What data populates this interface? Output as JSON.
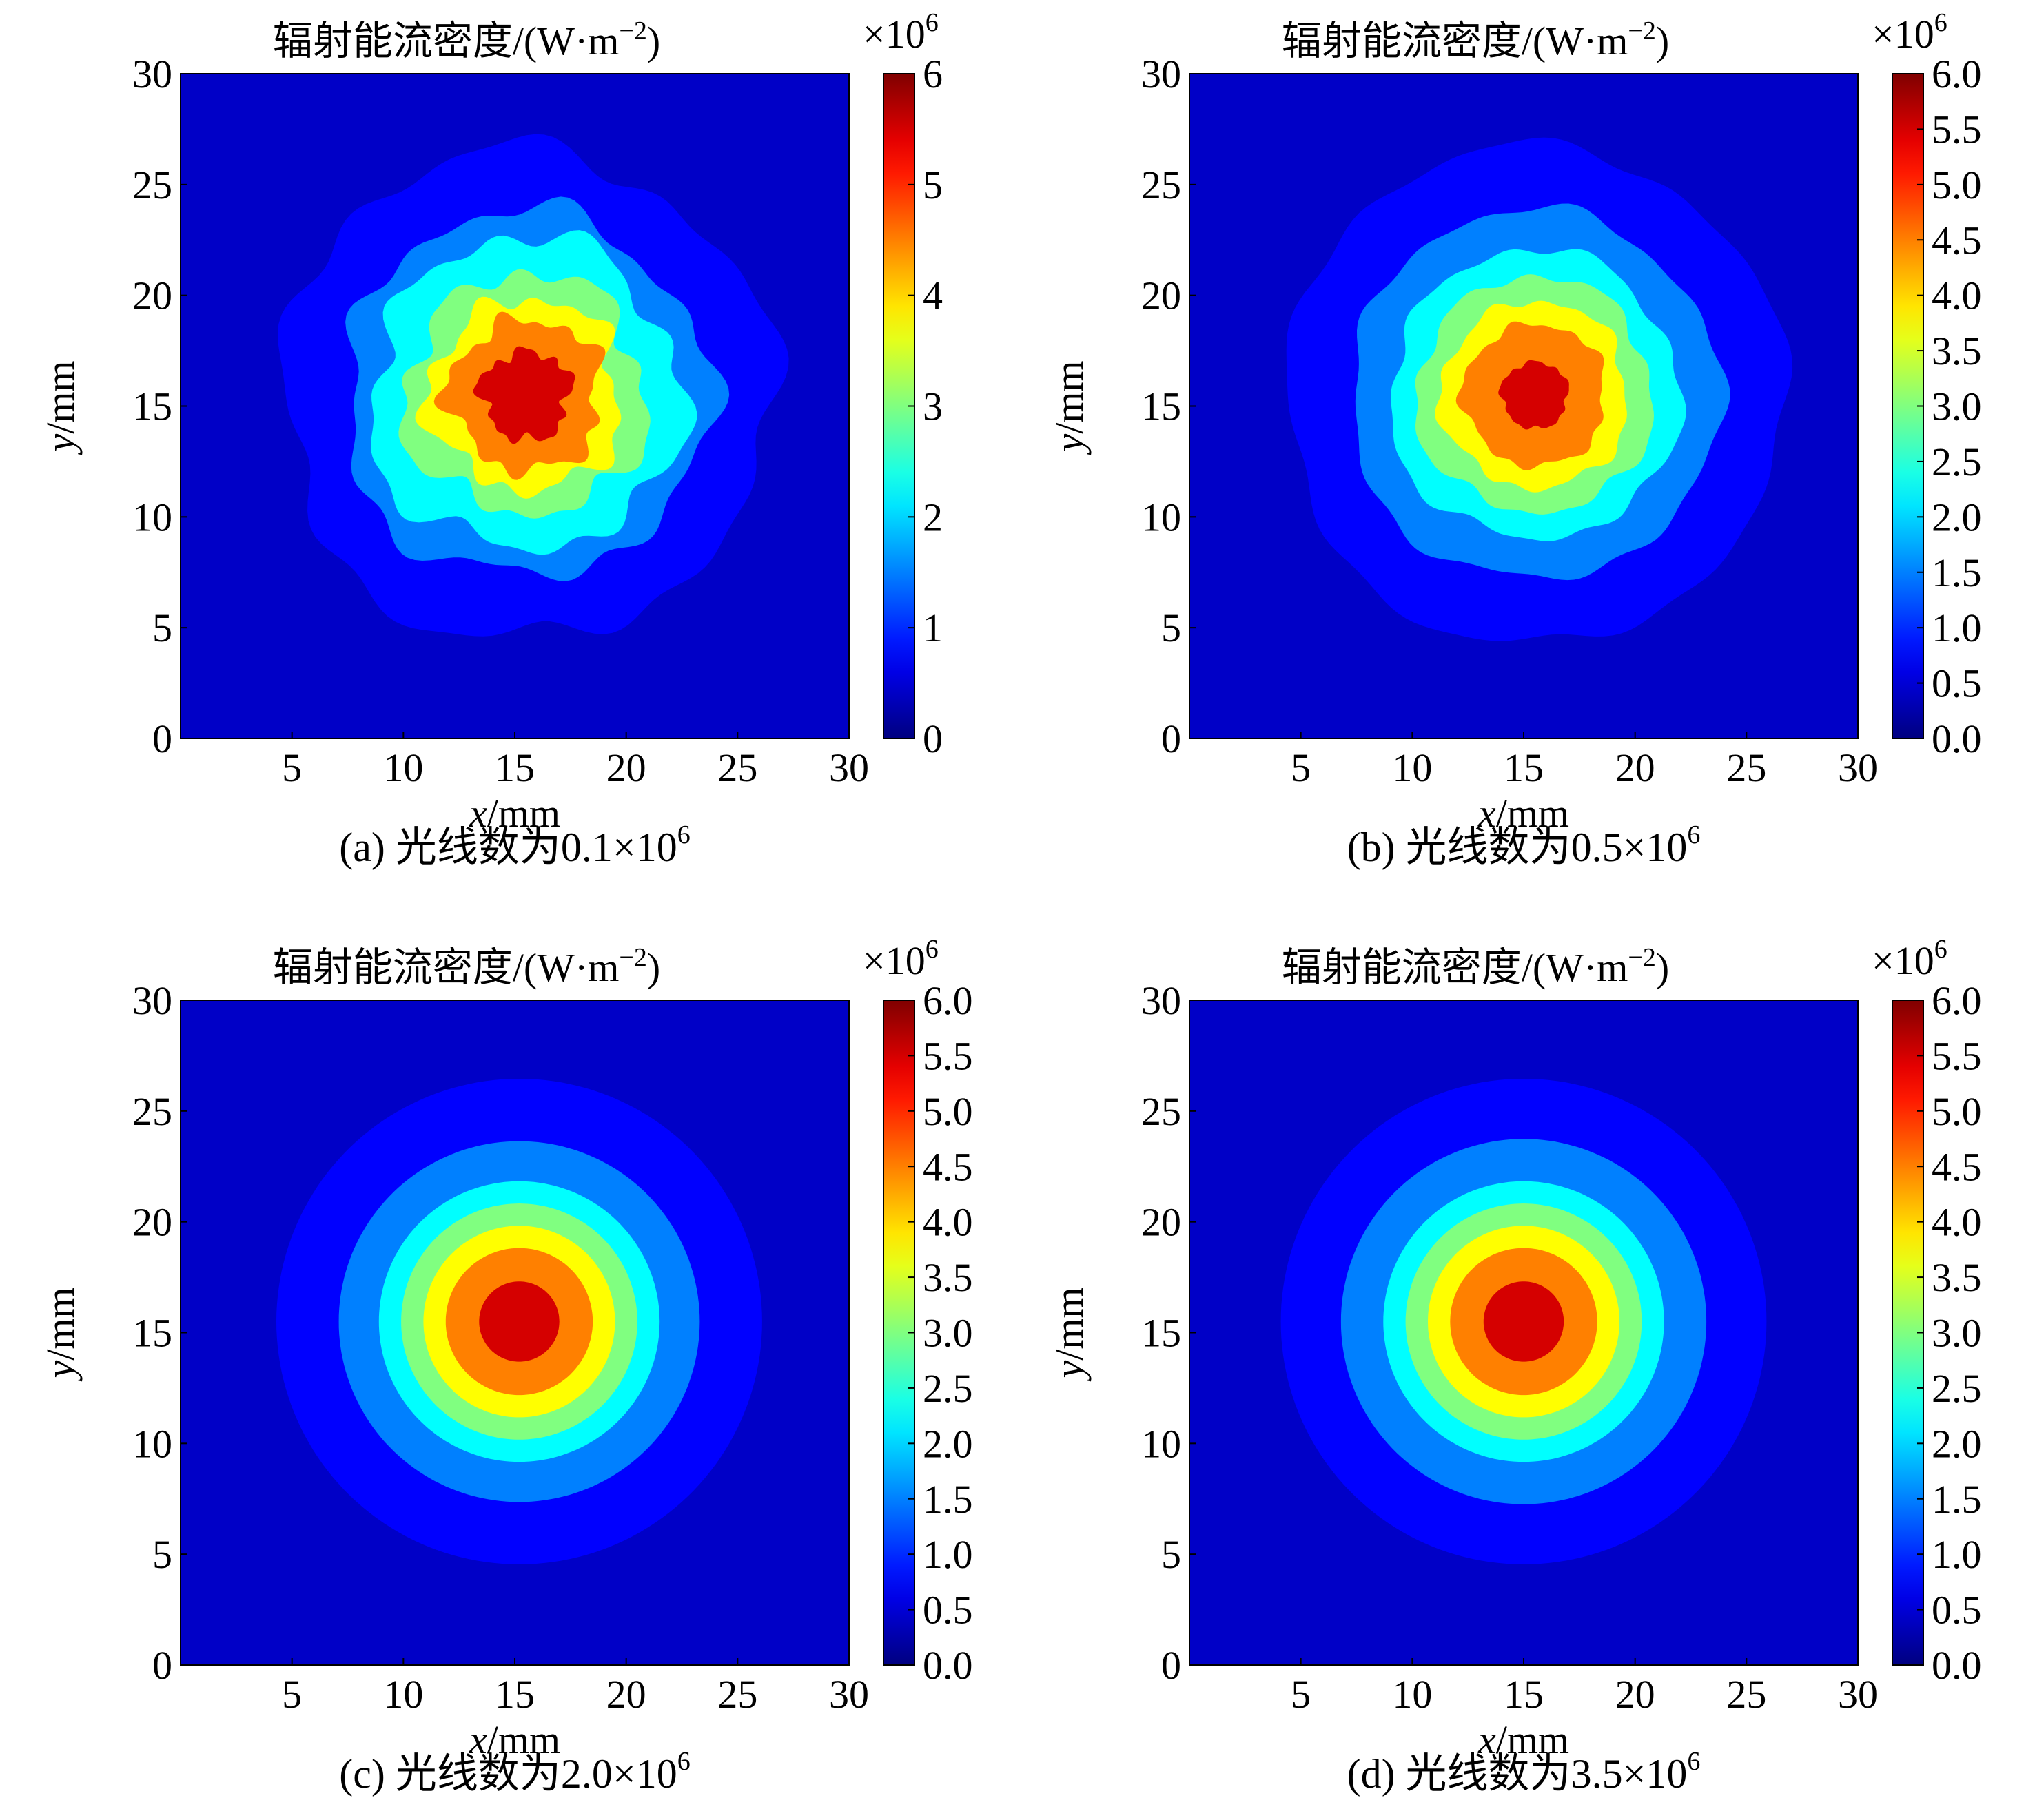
{
  "chart_data": [
    {
      "type": "heatmap",
      "panel": "a",
      "title": "辐射能流密度/(W·m",
      "title_sup": "−2",
      "title_tail": ")",
      "caption_prefix": "(a) 光线数为",
      "caption_value": "0.1×10",
      "caption_sup": "6",
      "xlabel_var": "x",
      "xlabel_unit": "/mm",
      "ylabel_var": "y",
      "ylabel_unit": "/mm",
      "xlim": [
        0,
        30
      ],
      "ylim": [
        0,
        30
      ],
      "x_ticks": [
        "5",
        "10",
        "15",
        "20",
        "25",
        "30"
      ],
      "y_ticks": [
        "0",
        "5",
        "10",
        "15",
        "20",
        "25",
        "30"
      ],
      "colorbar_multiplier": "×10",
      "colorbar_multiplier_sup": "6",
      "colorbar_range": [
        0,
        6
      ],
      "colorbar_ticks": [
        {
          "v": 0,
          "label": "0"
        },
        {
          "v": 1,
          "label": "1"
        },
        {
          "v": 2,
          "label": "2"
        },
        {
          "v": 3,
          "label": "3"
        },
        {
          "v": 4,
          "label": "4"
        },
        {
          "v": 5,
          "label": "5"
        },
        {
          "v": 6,
          "label": "6"
        }
      ],
      "center": [
        15.5,
        15.5
      ],
      "contour_levels": [
        0.75,
        1.5,
        2.25,
        3.0,
        3.75,
        4.5,
        5.5
      ],
      "contour_radii": [
        11.0,
        8.2,
        7.0,
        5.4,
        4.3,
        3.4,
        2.0
      ],
      "roughness": 0.1
    },
    {
      "type": "heatmap",
      "panel": "b",
      "title": "辐射能流密度/(W·m",
      "title_sup": "−2",
      "title_tail": ")",
      "caption_prefix": "(b) 光线数为",
      "caption_value": "0.5×10",
      "caption_sup": "6",
      "xlabel_var": "x",
      "xlabel_unit": "/mm",
      "ylabel_var": "y",
      "ylabel_unit": "/mm",
      "xlim": [
        0,
        30
      ],
      "ylim": [
        0,
        30
      ],
      "x_ticks": [
        "5",
        "10",
        "15",
        "20",
        "25",
        "30"
      ],
      "y_ticks": [
        "0",
        "5",
        "10",
        "15",
        "20",
        "25",
        "30"
      ],
      "colorbar_multiplier": "×10",
      "colorbar_multiplier_sup": "6",
      "colorbar_range": [
        0,
        6
      ],
      "colorbar_ticks": [
        {
          "v": 0,
          "label": "0.0"
        },
        {
          "v": 0.5,
          "label": "0.5"
        },
        {
          "v": 1,
          "label": "1.0"
        },
        {
          "v": 1.5,
          "label": "1.5"
        },
        {
          "v": 2,
          "label": "2.0"
        },
        {
          "v": 2.5,
          "label": "2.5"
        },
        {
          "v": 3,
          "label": "3.0"
        },
        {
          "v": 3.5,
          "label": "3.5"
        },
        {
          "v": 4,
          "label": "4.0"
        },
        {
          "v": 4.5,
          "label": "4.5"
        },
        {
          "v": 5,
          "label": "5.0"
        },
        {
          "v": 5.5,
          "label": "5.5"
        },
        {
          "v": 6,
          "label": "6.0"
        }
      ],
      "center": [
        15.5,
        15.5
      ],
      "contour_levels": [
        0.75,
        1.5,
        2.25,
        3.0,
        3.75,
        4.5,
        5.5
      ],
      "contour_radii": [
        11.2,
        8.3,
        6.5,
        5.3,
        4.2,
        3.2,
        1.5
      ],
      "roughness": 0.05
    },
    {
      "type": "heatmap",
      "panel": "c",
      "title": "辐射能流密度/(W·m",
      "title_sup": "−2",
      "title_tail": ")",
      "caption_prefix": "(c) 光线数为",
      "caption_value": "2.0×10",
      "caption_sup": "6",
      "xlabel_var": "x",
      "xlabel_unit": "/mm",
      "ylabel_var": "y",
      "ylabel_unit": "/mm",
      "xlim": [
        0,
        30
      ],
      "ylim": [
        0,
        30
      ],
      "x_ticks": [
        "5",
        "10",
        "15",
        "20",
        "25",
        "30"
      ],
      "y_ticks": [
        "0",
        "5",
        "10",
        "15",
        "20",
        "25",
        "30"
      ],
      "colorbar_multiplier": "×10",
      "colorbar_multiplier_sup": "6",
      "colorbar_range": [
        0,
        6
      ],
      "colorbar_ticks": [
        {
          "v": 0,
          "label": "0.0"
        },
        {
          "v": 0.5,
          "label": "0.5"
        },
        {
          "v": 1,
          "label": "1.0"
        },
        {
          "v": 1.5,
          "label": "1.5"
        },
        {
          "v": 2,
          "label": "2.0"
        },
        {
          "v": 2.5,
          "label": "2.5"
        },
        {
          "v": 3,
          "label": "3.0"
        },
        {
          "v": 3.5,
          "label": "3.5"
        },
        {
          "v": 4,
          "label": "4.0"
        },
        {
          "v": 4.5,
          "label": "4.5"
        },
        {
          "v": 5,
          "label": "5.0"
        },
        {
          "v": 5.5,
          "label": "5.5"
        },
        {
          "v": 6,
          "label": "6.0"
        }
      ],
      "center": [
        15.2,
        15.5
      ],
      "contour_levels": [
        0.75,
        1.5,
        2.25,
        3.0,
        3.75,
        4.5,
        5.5
      ],
      "contour_radii": [
        10.9,
        8.1,
        6.3,
        5.3,
        4.3,
        3.3,
        1.8
      ],
      "roughness": 0.0
    },
    {
      "type": "heatmap",
      "panel": "d",
      "title": "辐射能流密度/(W·m",
      "title_sup": "−2",
      "title_tail": ")",
      "caption_prefix": "(d) 光线数为",
      "caption_value": "3.5×10",
      "caption_sup": "6",
      "xlabel_var": "x",
      "xlabel_unit": "/mm",
      "ylabel_var": "y",
      "ylabel_unit": "/mm",
      "xlim": [
        0,
        30
      ],
      "ylim": [
        0,
        30
      ],
      "x_ticks": [
        "5",
        "10",
        "15",
        "20",
        "25",
        "30"
      ],
      "y_ticks": [
        "0",
        "5",
        "10",
        "15",
        "20",
        "25",
        "30"
      ],
      "colorbar_multiplier": "×10",
      "colorbar_multiplier_sup": "6",
      "colorbar_range": [
        0,
        6
      ],
      "colorbar_ticks": [
        {
          "v": 0,
          "label": "0.0"
        },
        {
          "v": 0.5,
          "label": "0.5"
        },
        {
          "v": 1,
          "label": "1.0"
        },
        {
          "v": 1.5,
          "label": "1.5"
        },
        {
          "v": 2,
          "label": "2.0"
        },
        {
          "v": 2.5,
          "label": "2.5"
        },
        {
          "v": 3,
          "label": "3.0"
        },
        {
          "v": 3.5,
          "label": "3.5"
        },
        {
          "v": 4,
          "label": "4.0"
        },
        {
          "v": 4.5,
          "label": "4.5"
        },
        {
          "v": 5,
          "label": "5.0"
        },
        {
          "v": 5.5,
          "label": "5.5"
        },
        {
          "v": 6,
          "label": "6.0"
        }
      ],
      "center": [
        15.0,
        15.5
      ],
      "contour_levels": [
        0.75,
        1.5,
        2.25,
        3.0,
        3.75,
        4.5,
        5.5
      ],
      "contour_radii": [
        10.9,
        8.2,
        6.3,
        5.3,
        4.3,
        3.3,
        1.8
      ],
      "roughness": 0.0
    }
  ],
  "colormap": "jet",
  "colors": {
    "background_level": "#00008f",
    "axis": "#000000"
  }
}
